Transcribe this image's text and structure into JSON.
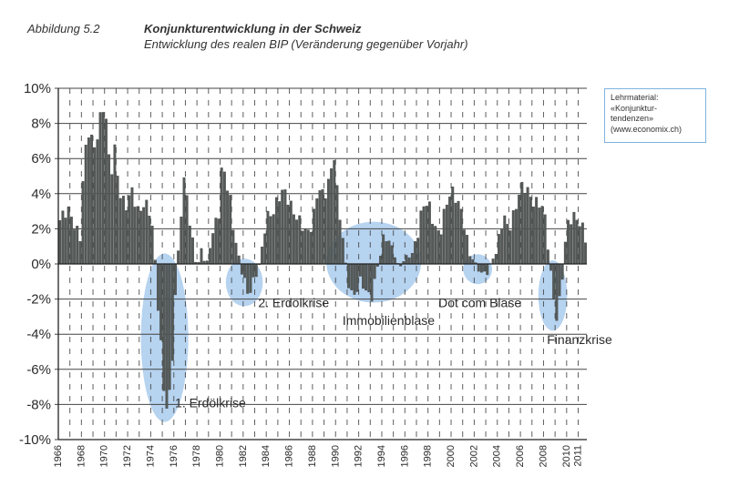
{
  "header": {
    "figure_label": "Abbildung 5.2",
    "title": "Konjunkturentwicklung in der Schweiz",
    "subtitle": "Entwicklung des realen BIP (Veränderung gegenüber Vorjahr)"
  },
  "note": {
    "lines": [
      "Lehrmaterial:",
      "«Konjunktur-",
      "tendenzen»",
      "(www.economix.ch)"
    ]
  },
  "colors": {
    "bar": "#555a58",
    "bar_edge": "#3a3d3c",
    "highlight": "#7aaee3",
    "grid": "#444444",
    "text": "#2b2b2b"
  },
  "chart_data": {
    "type": "bar",
    "granularity": "quarterly",
    "ylim": [
      -10,
      10
    ],
    "xlim": [
      1966,
      2011.75
    ],
    "yticks": [
      10,
      8,
      6,
      4,
      2,
      0,
      -2,
      -4,
      -6,
      -8,
      -10
    ],
    "ytick_labels": [
      "10%",
      "8%",
      "6%",
      "4%",
      "2%",
      "0%",
      "-2%",
      "-4%",
      "-6%",
      "-8%",
      "-10%"
    ],
    "xticks": [
      1966,
      1968,
      1970,
      1972,
      1974,
      1976,
      1978,
      1980,
      1982,
      1984,
      1986,
      1988,
      1990,
      1992,
      1994,
      1996,
      1998,
      2000,
      2002,
      2004,
      2006,
      2008,
      2010,
      2011
    ],
    "grid": "horizontal solid, vertical dashed per year",
    "keyframes": [
      [
        1966.0,
        2.4
      ],
      [
        1967.0,
        3.0
      ],
      [
        1967.9,
        1.5
      ],
      [
        1968.2,
        5.5
      ],
      [
        1968.6,
        7.5
      ],
      [
        1969.2,
        6.8
      ],
      [
        1969.6,
        8.2
      ],
      [
        1970.0,
        9.0
      ],
      [
        1970.5,
        5.0
      ],
      [
        1970.9,
        6.8
      ],
      [
        1971.3,
        4.0
      ],
      [
        1971.8,
        3.0
      ],
      [
        1972.4,
        4.4
      ],
      [
        1972.9,
        3.0
      ],
      [
        1973.5,
        3.2
      ],
      [
        1974.0,
        3.0
      ],
      [
        1974.3,
        1.0
      ],
      [
        1974.6,
        -2.0
      ],
      [
        1974.9,
        -5.0
      ],
      [
        1975.2,
        -8.0
      ],
      [
        1975.5,
        -8.5
      ],
      [
        1975.8,
        -6.0
      ],
      [
        1976.1,
        -2.0
      ],
      [
        1976.4,
        1.0
      ],
      [
        1976.7,
        3.5
      ],
      [
        1977.0,
        5.0
      ],
      [
        1977.3,
        2.5
      ],
      [
        1977.6,
        1.5
      ],
      [
        1978.0,
        -0.3
      ],
      [
        1978.4,
        0.8
      ],
      [
        1978.8,
        -0.3
      ],
      [
        1979.2,
        1.5
      ],
      [
        1979.6,
        2.5
      ],
      [
        1979.9,
        3.0
      ],
      [
        1980.2,
        5.8
      ],
      [
        1980.5,
        4.5
      ],
      [
        1980.8,
        4.0
      ],
      [
        1981.2,
        2.0
      ],
      [
        1981.6,
        0.5
      ],
      [
        1982.0,
        -1.0
      ],
      [
        1982.4,
        -1.8
      ],
      [
        1982.8,
        -1.0
      ],
      [
        1983.2,
        -0.5
      ],
      [
        1983.6,
        0.5
      ],
      [
        1984.0,
        2.5
      ],
      [
        1984.5,
        3.0
      ],
      [
        1985.0,
        3.8
      ],
      [
        1985.5,
        4.0
      ],
      [
        1986.0,
        3.5
      ],
      [
        1986.5,
        3.0
      ],
      [
        1987.0,
        2.2
      ],
      [
        1987.5,
        1.5
      ],
      [
        1988.0,
        2.5
      ],
      [
        1988.5,
        4.5
      ],
      [
        1989.0,
        3.5
      ],
      [
        1989.5,
        5.0
      ],
      [
        1989.9,
        6.5
      ],
      [
        1990.2,
        3.5
      ],
      [
        1990.6,
        1.5
      ],
      [
        1991.0,
        -0.8
      ],
      [
        1991.5,
        -1.8
      ],
      [
        1992.0,
        -1.0
      ],
      [
        1992.5,
        -1.5
      ],
      [
        1993.0,
        -2.0
      ],
      [
        1993.5,
        -0.5
      ],
      [
        1994.0,
        1.0
      ],
      [
        1994.5,
        1.5
      ],
      [
        1995.0,
        0.8
      ],
      [
        1995.5,
        -0.3
      ],
      [
        1996.0,
        0.3
      ],
      [
        1996.5,
        0.5
      ],
      [
        1997.0,
        1.5
      ],
      [
        1997.5,
        3.0
      ],
      [
        1998.0,
        3.5
      ],
      [
        1998.5,
        2.5
      ],
      [
        1999.0,
        1.5
      ],
      [
        1999.5,
        3.0
      ],
      [
        2000.0,
        4.4
      ],
      [
        2000.5,
        3.8
      ],
      [
        2001.0,
        2.5
      ],
      [
        2001.5,
        0.8
      ],
      [
        2002.0,
        0.2
      ],
      [
        2002.5,
        -0.5
      ],
      [
        2003.0,
        -0.8
      ],
      [
        2003.5,
        0.2
      ],
      [
        2004.0,
        1.0
      ],
      [
        2004.5,
        2.5
      ],
      [
        2005.0,
        2.0
      ],
      [
        2005.5,
        3.2
      ],
      [
        2006.0,
        4.2
      ],
      [
        2006.5,
        4.2
      ],
      [
        2007.0,
        3.8
      ],
      [
        2007.5,
        3.5
      ],
      [
        2008.0,
        3.0
      ],
      [
        2008.4,
        1.0
      ],
      [
        2008.8,
        -1.5
      ],
      [
        2009.2,
        -3.2
      ],
      [
        2009.6,
        -1.0
      ],
      [
        2010.0,
        2.0
      ],
      [
        2010.5,
        3.0
      ],
      [
        2011.0,
        2.5
      ],
      [
        2011.7,
        1.2
      ]
    ],
    "annotations": [
      {
        "label": "1. Erdölkrise",
        "x": 1975.2,
        "y": -4.2,
        "rx": 2.05,
        "ry": 4.8,
        "label_x": 1976.1,
        "label_y": -7.9,
        "leader_end_x": 1976.1
      },
      {
        "label": "2. Erdölkrise",
        "x": 1982.1,
        "y": -1.05,
        "rx": 1.6,
        "ry": 1.35,
        "label_x": 1983.3,
        "label_y": -2.2,
        "leader_end_x": 1982.9
      },
      {
        "label": "Immobilienblase",
        "x": 1993.3,
        "y": 0.1,
        "rx": 4.1,
        "ry": 2.3,
        "label_x": 1990.6,
        "label_y": -3.2,
        "leader_end_x": 1990.6
      },
      {
        "label": "Dot com Blase",
        "x": 2002.3,
        "y": -0.3,
        "rx": 1.25,
        "ry": 0.85,
        "label_x": 1998.9,
        "label_y": -2.2,
        "leader_end_x": 2004.6
      },
      {
        "label": "Finanzkrise",
        "x": 2008.8,
        "y": -1.8,
        "rx": 1.25,
        "ry": 2.0,
        "label_x": 2008.3,
        "label_y": -4.3,
        "leader_end_x": 2008.3
      }
    ]
  }
}
